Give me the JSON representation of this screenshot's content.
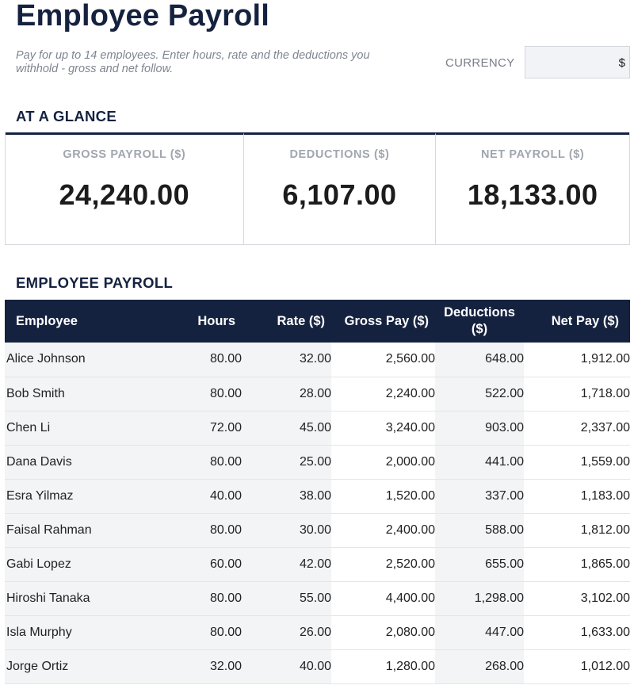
{
  "header": {
    "title": "Employee Payroll",
    "subtitle": "Pay for up to 14 employees. Enter hours, rate and the deductions you withhold - gross and net follow."
  },
  "currency": {
    "label": "CURRENCY",
    "value": "$"
  },
  "glance": {
    "heading": "AT A GLANCE",
    "gross": {
      "label": "GROSS PAYROLL ($)",
      "value": "24,240.00"
    },
    "deductions": {
      "label": "DEDUCTIONS ($)",
      "value": "6,107.00"
    },
    "net": {
      "label": "NET PAYROLL ($)",
      "value": "18,133.00"
    }
  },
  "payroll": {
    "heading": "EMPLOYEE PAYROLL",
    "columns": {
      "employee": "Employee",
      "hours": "Hours",
      "rate": "Rate ($)",
      "gross": "Gross Pay ($)",
      "deductions": "Deductions ($)",
      "net": "Net Pay ($)"
    },
    "rows": [
      {
        "employee": "Alice Johnson",
        "hours": "80.00",
        "rate": "32.00",
        "gross": "2,560.00",
        "deductions": "648.00",
        "net": "1,912.00"
      },
      {
        "employee": "Bob Smith",
        "hours": "80.00",
        "rate": "28.00",
        "gross": "2,240.00",
        "deductions": "522.00",
        "net": "1,718.00"
      },
      {
        "employee": "Chen Li",
        "hours": "72.00",
        "rate": "45.00",
        "gross": "3,240.00",
        "deductions": "903.00",
        "net": "2,337.00"
      },
      {
        "employee": "Dana Davis",
        "hours": "80.00",
        "rate": "25.00",
        "gross": "2,000.00",
        "deductions": "441.00",
        "net": "1,559.00"
      },
      {
        "employee": "Esra Yilmaz",
        "hours": "40.00",
        "rate": "38.00",
        "gross": "1,520.00",
        "deductions": "337.00",
        "net": "1,183.00"
      },
      {
        "employee": "Faisal Rahman",
        "hours": "80.00",
        "rate": "30.00",
        "gross": "2,400.00",
        "deductions": "588.00",
        "net": "1,812.00"
      },
      {
        "employee": "Gabi Lopez",
        "hours": "60.00",
        "rate": "42.00",
        "gross": "2,520.00",
        "deductions": "655.00",
        "net": "1,865.00"
      },
      {
        "employee": "Hiroshi Tanaka",
        "hours": "80.00",
        "rate": "55.00",
        "gross": "4,400.00",
        "deductions": "1,298.00",
        "net": "3,102.00"
      },
      {
        "employee": "Isla Murphy",
        "hours": "80.00",
        "rate": "26.00",
        "gross": "2,080.00",
        "deductions": "447.00",
        "net": "1,633.00"
      },
      {
        "employee": "Jorge Ortiz",
        "hours": "32.00",
        "rate": "40.00",
        "gross": "1,280.00",
        "deductions": "268.00",
        "net": "1,012.00"
      }
    ]
  }
}
